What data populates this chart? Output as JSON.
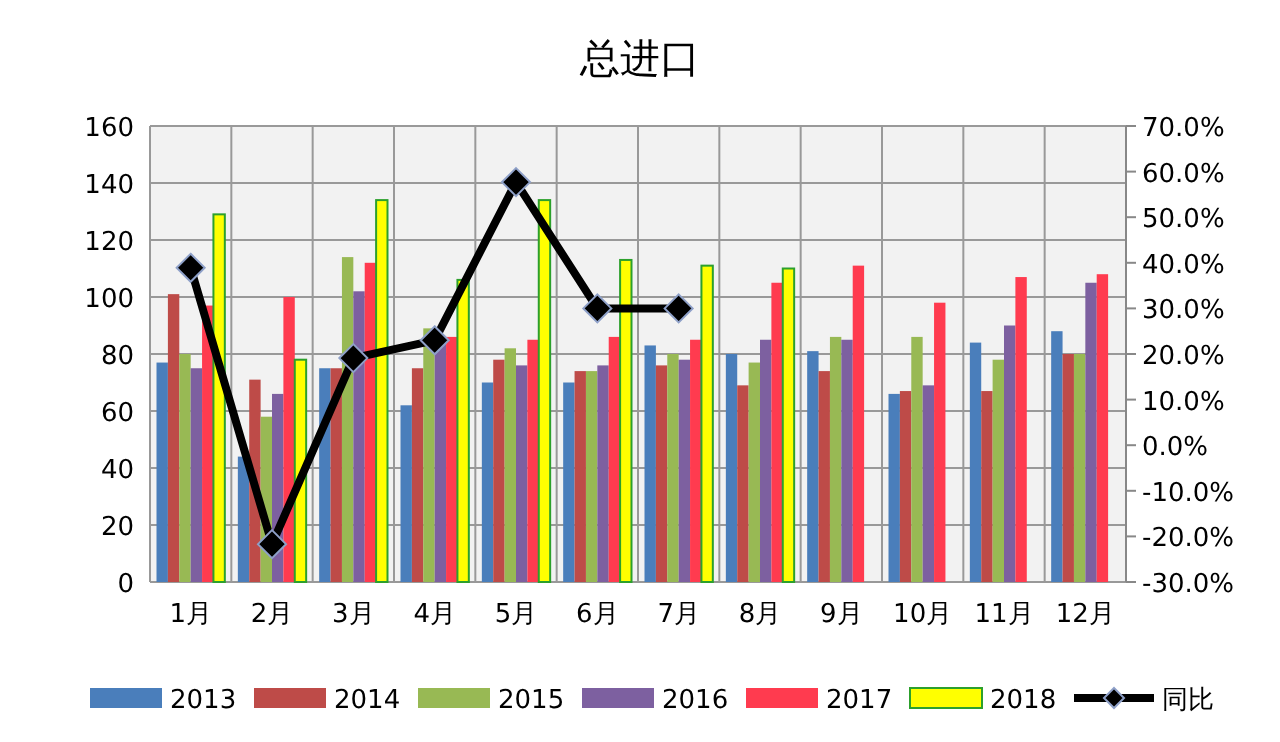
{
  "chart_data": {
    "type": "bar",
    "title": "总进口",
    "categories": [
      "1月",
      "2月",
      "3月",
      "4月",
      "5月",
      "6月",
      "7月",
      "8月",
      "9月",
      "10月",
      "11月",
      "12月"
    ],
    "series": [
      {
        "name": "2013",
        "color": "#4a7ebb",
        "values": [
          77,
          44,
          75,
          62,
          70,
          70,
          83,
          80,
          81,
          66,
          84,
          88
        ]
      },
      {
        "name": "2014",
        "color": "#be4b48",
        "values": [
          101,
          71,
          75,
          75,
          78,
          74,
          76,
          69,
          74,
          67,
          67,
          80
        ]
      },
      {
        "name": "2015",
        "color": "#98b954",
        "values": [
          80,
          58,
          114,
          89,
          82,
          74,
          80,
          77,
          86,
          86,
          78,
          80
        ]
      },
      {
        "name": "2016",
        "color": "#7d60a0",
        "values": [
          75,
          66,
          102,
          85,
          76,
          76,
          78,
          85,
          85,
          69,
          90,
          105
        ]
      },
      {
        "name": "2017",
        "color": "#ff3b4f",
        "values": [
          97,
          100,
          112,
          86,
          85,
          86,
          85,
          105,
          111,
          98,
          107,
          108
        ]
      },
      {
        "name": "2018",
        "color": "#ffff00",
        "values": [
          129,
          78,
          134,
          106,
          134,
          113,
          111,
          110,
          null,
          null,
          null,
          null
        ]
      },
      {
        "name": "同比",
        "type": "line",
        "axis": "y2",
        "color": "#000000",
        "marker": "diamond",
        "values": [
          38.9,
          -21.7,
          19.1,
          23,
          57.7,
          30,
          30,
          null,
          null,
          null,
          null,
          null
        ]
      }
    ],
    "ylim": [
      0,
      160
    ],
    "yticks": [
      0,
      20,
      40,
      60,
      80,
      100,
      120,
      140,
      160
    ],
    "y2lim": [
      -30,
      70
    ],
    "y2ticks": [
      {
        "value": -30,
        "label": "-30.0%"
      },
      {
        "value": -20,
        "label": "-20.0%"
      },
      {
        "value": -10,
        "label": "-10.0%"
      },
      {
        "value": 0,
        "label": "0.0%"
      },
      {
        "value": 10,
        "label": "10.0%"
      },
      {
        "value": 20,
        "label": "20.0%"
      },
      {
        "value": 30,
        "label": "30.0%"
      },
      {
        "value": 40,
        "label": "40.0%"
      },
      {
        "value": 50,
        "label": "50.0%"
      },
      {
        "value": 60,
        "label": "60.0%"
      },
      {
        "value": 70,
        "label": "70.0%"
      }
    ],
    "grid": true,
    "legend": "bottom"
  }
}
